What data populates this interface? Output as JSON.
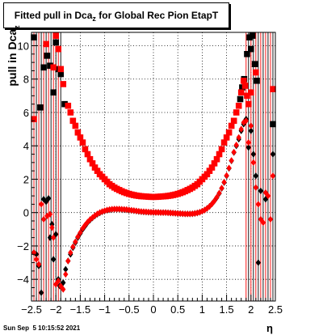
{
  "title": {
    "main": "Fitted pull in Dca",
    "subscript": "z",
    "rest": " for Global Rec Pion EtapT"
  },
  "ylabel": {
    "main": "pull in Dca",
    "subscript": "z"
  },
  "xlabel": "η",
  "timestamp": "Sun Sep  5 10:15:52 2021",
  "colors": {
    "series_a": "#000000",
    "series_b": "#ff0000",
    "grid": "#000000"
  },
  "chart_data": {
    "type": "scatter",
    "title": "Fitted pull in Dca_z for Global Rec Pion EtapT",
    "xlabel": "η",
    "ylabel": "pull in Dca_z",
    "xlim": [
      -2.5,
      2.5
    ],
    "ylim": [
      -5.3,
      10.8
    ],
    "grid": true,
    "x_ticks": [
      -2.5,
      -2,
      -1.5,
      -1,
      -0.5,
      0,
      0.5,
      1,
      1.5,
      2,
      2.5
    ],
    "x_tick_labels": [
      "−2.5",
      "−2",
      "−1.5",
      "−1",
      "−0.5",
      "0",
      "0.5",
      "1",
      "1.5",
      "2",
      "2.5"
    ],
    "y_ticks": [
      -4,
      -2,
      0,
      2,
      4,
      6,
      8,
      10
    ],
    "y_tick_labels": [
      "−4",
      "−2",
      "0",
      "2",
      "4",
      "6",
      "8",
      "10"
    ],
    "series": [
      {
        "marker": "square",
        "color": "#000000",
        "points": [
          [
            -2.45,
            10.5
          ],
          [
            -2.32,
            6.3
          ],
          [
            -2.25,
            8.7
          ],
          [
            -2.18,
            9.4
          ],
          [
            -2.12,
            8.8
          ],
          [
            -2.05,
            7.2
          ],
          [
            -2.0,
            10.2
          ],
          [
            -1.95,
            8.6
          ],
          [
            -1.9,
            8.3
          ],
          [
            -1.82,
            6.5
          ],
          [
            1.78,
            6.8
          ],
          [
            1.82,
            7.5
          ],
          [
            1.86,
            8.0
          ],
          [
            1.92,
            9.5
          ],
          [
            1.97,
            10.5
          ],
          [
            2.0,
            9.8
          ],
          [
            2.03,
            10.6
          ],
          [
            2.08,
            8.9
          ],
          [
            2.12,
            7.9
          ],
          [
            2.45,
            5.3
          ]
        ]
      },
      {
        "marker": "square",
        "color": "#ff0000",
        "points": [
          [
            -2.45,
            5.6
          ],
          [
            -2.2,
            10.1
          ],
          [
            -2.05,
            8.7
          ],
          [
            -2.0,
            10.6
          ],
          [
            -1.95,
            9.8
          ],
          [
            -1.9,
            8.6
          ],
          [
            -1.85,
            7.7
          ],
          [
            -1.75,
            6.4
          ],
          [
            -1.7,
            6.0
          ],
          [
            -1.65,
            5.5
          ],
          [
            -1.6,
            5.2
          ],
          [
            -1.55,
            4.8
          ],
          [
            -1.5,
            4.5
          ],
          [
            -1.45,
            4.2
          ],
          [
            -1.4,
            3.8
          ],
          [
            -1.35,
            3.5
          ],
          [
            -1.3,
            3.2
          ],
          [
            -1.25,
            2.95
          ],
          [
            -1.2,
            2.7
          ],
          [
            -1.15,
            2.5
          ],
          [
            -1.1,
            2.3
          ],
          [
            -1.05,
            2.15
          ],
          [
            -1.0,
            2.0
          ],
          [
            -0.95,
            1.85
          ],
          [
            -0.9,
            1.7
          ],
          [
            -0.85,
            1.6
          ],
          [
            -0.8,
            1.5
          ],
          [
            -0.75,
            1.42
          ],
          [
            -0.7,
            1.35
          ],
          [
            -0.65,
            1.28
          ],
          [
            -0.6,
            1.22
          ],
          [
            -0.55,
            1.17
          ],
          [
            -0.5,
            1.12
          ],
          [
            -0.45,
            1.08
          ],
          [
            -0.4,
            1.05
          ],
          [
            -0.35,
            1.02
          ],
          [
            -0.3,
            1.0
          ],
          [
            -0.25,
            0.98
          ],
          [
            -0.2,
            0.97
          ],
          [
            -0.15,
            0.96
          ],
          [
            -0.1,
            0.95
          ],
          [
            -0.05,
            0.94
          ],
          [
            0.0,
            0.94
          ],
          [
            0.05,
            0.94
          ],
          [
            0.1,
            0.95
          ],
          [
            0.15,
            0.96
          ],
          [
            0.2,
            0.97
          ],
          [
            0.25,
            0.98
          ],
          [
            0.3,
            1.0
          ],
          [
            0.35,
            1.02
          ],
          [
            0.4,
            1.05
          ],
          [
            0.45,
            1.08
          ],
          [
            0.5,
            1.12
          ],
          [
            0.55,
            1.17
          ],
          [
            0.6,
            1.22
          ],
          [
            0.65,
            1.28
          ],
          [
            0.7,
            1.35
          ],
          [
            0.75,
            1.42
          ],
          [
            0.8,
            1.5
          ],
          [
            0.85,
            1.6
          ],
          [
            0.9,
            1.7
          ],
          [
            0.95,
            1.85
          ],
          [
            1.0,
            2.0
          ],
          [
            1.05,
            2.15
          ],
          [
            1.1,
            2.3
          ],
          [
            1.15,
            2.5
          ],
          [
            1.2,
            2.7
          ],
          [
            1.25,
            2.95
          ],
          [
            1.3,
            3.2
          ],
          [
            1.35,
            3.5
          ],
          [
            1.4,
            3.8
          ],
          [
            1.45,
            4.2
          ],
          [
            1.5,
            4.5
          ],
          [
            1.55,
            4.8
          ],
          [
            1.6,
            5.2
          ],
          [
            1.65,
            5.5
          ],
          [
            1.7,
            6.0
          ],
          [
            1.75,
            6.4
          ],
          [
            1.8,
            7.2
          ],
          [
            1.85,
            7.9
          ],
          [
            1.88,
            7.6
          ],
          [
            1.92,
            7.0
          ],
          [
            1.95,
            6.5
          ],
          [
            2.0,
            7.2
          ],
          [
            2.1,
            8.4
          ],
          [
            2.45,
            7.4
          ]
        ]
      },
      {
        "marker": "diamond",
        "color": "#000000",
        "points": [
          [
            -2.45,
            -2.4
          ],
          [
            -2.4,
            -2.5
          ],
          [
            -2.35,
            -3.2
          ],
          [
            -2.3,
            -4.8
          ],
          [
            -2.25,
            0.8
          ],
          [
            -2.2,
            0.65
          ],
          [
            -2.15,
            0.85
          ],
          [
            -2.12,
            -1.5
          ],
          [
            -2.08,
            -0.7
          ],
          [
            -2.05,
            -2.8
          ],
          [
            -2.0,
            -1.3
          ],
          [
            -1.95,
            -4.0
          ],
          [
            -1.92,
            -4.4
          ],
          [
            -1.85,
            -4.2
          ],
          [
            -1.8,
            -3.4
          ],
          [
            -1.75,
            -2.9
          ],
          [
            -1.7,
            -2.5
          ],
          [
            -1.65,
            -2.1
          ],
          [
            -1.6,
            -1.8
          ],
          [
            -1.55,
            -1.5
          ],
          [
            -1.5,
            -1.25
          ],
          [
            -1.45,
            -1.0
          ],
          [
            -1.4,
            -0.8
          ],
          [
            -1.35,
            -0.6
          ],
          [
            -1.3,
            -0.45
          ],
          [
            -1.25,
            -0.32
          ],
          [
            -1.2,
            -0.2
          ],
          [
            -1.15,
            -0.1
          ],
          [
            -1.1,
            -0.02
          ],
          [
            -1.05,
            0.05
          ],
          [
            -1.0,
            0.1
          ],
          [
            -0.95,
            0.14
          ],
          [
            -0.9,
            0.17
          ],
          [
            -0.85,
            0.19
          ],
          [
            -0.8,
            0.2
          ],
          [
            -0.75,
            0.2
          ],
          [
            -0.7,
            0.2
          ],
          [
            -0.65,
            0.19
          ],
          [
            -0.6,
            0.18
          ],
          [
            -0.55,
            0.17
          ],
          [
            -0.5,
            0.15
          ],
          [
            -0.45,
            0.13
          ],
          [
            -0.4,
            0.11
          ],
          [
            -0.35,
            0.09
          ],
          [
            -0.3,
            0.07
          ],
          [
            -0.25,
            0.05
          ],
          [
            -0.2,
            0.04
          ],
          [
            -0.15,
            0.03
          ],
          [
            -0.1,
            0.02
          ],
          [
            -0.05,
            0.02
          ],
          [
            0.0,
            0.01
          ],
          [
            0.05,
            0.01
          ],
          [
            0.1,
            0.01
          ],
          [
            0.15,
            0.0
          ],
          [
            0.2,
            0.0
          ],
          [
            0.25,
            0.0
          ],
          [
            0.3,
            -0.01
          ],
          [
            0.35,
            -0.02
          ],
          [
            0.4,
            -0.03
          ],
          [
            0.45,
            -0.04
          ],
          [
            0.5,
            -0.05
          ],
          [
            0.55,
            -0.06
          ],
          [
            0.6,
            -0.07
          ],
          [
            0.65,
            -0.08
          ],
          [
            0.7,
            -0.08
          ],
          [
            0.75,
            -0.08
          ],
          [
            0.8,
            -0.07
          ],
          [
            0.85,
            -0.05
          ],
          [
            0.9,
            -0.02
          ],
          [
            0.95,
            0.02
          ],
          [
            1.0,
            0.08
          ],
          [
            1.05,
            0.15
          ],
          [
            1.1,
            0.25
          ],
          [
            1.15,
            0.37
          ],
          [
            1.2,
            0.52
          ],
          [
            1.25,
            0.7
          ],
          [
            1.3,
            0.9
          ],
          [
            1.35,
            1.15
          ],
          [
            1.4,
            1.45
          ],
          [
            1.45,
            1.8
          ],
          [
            1.5,
            2.2
          ],
          [
            1.55,
            2.65
          ],
          [
            1.6,
            3.1
          ],
          [
            1.65,
            3.6
          ],
          [
            1.7,
            4.0
          ],
          [
            1.75,
            4.4
          ],
          [
            1.8,
            4.9
          ],
          [
            1.85,
            5.3
          ],
          [
            1.9,
            5.6
          ],
          [
            1.95,
            3.9
          ],
          [
            2.0,
            4.9
          ],
          [
            2.05,
            3.5
          ],
          [
            2.1,
            2.2
          ],
          [
            2.15,
            -3.0
          ],
          [
            2.2,
            1.3
          ],
          [
            2.3,
            0.8
          ],
          [
            2.45,
            3.5
          ]
        ]
      },
      {
        "marker": "diamond",
        "color": "#ff0000",
        "points": [
          [
            -2.45,
            -2.4
          ],
          [
            -2.4,
            -2.8
          ],
          [
            -2.35,
            -3.1
          ],
          [
            -2.3,
            0.5
          ],
          [
            -2.25,
            -0.4
          ],
          [
            -2.18,
            -0.2
          ],
          [
            -2.12,
            -0.1
          ],
          [
            -2.08,
            -0.9
          ],
          [
            -2.05,
            -1.5
          ],
          [
            -2.0,
            -4.3
          ],
          [
            -1.95,
            -4.1
          ],
          [
            -1.9,
            -4.4
          ],
          [
            -1.85,
            -4.6
          ],
          [
            -1.8,
            -3.7
          ],
          [
            -1.75,
            -2.9
          ],
          [
            -1.7,
            -2.4
          ],
          [
            -1.65,
            -2.05
          ],
          [
            -1.6,
            -1.75
          ],
          [
            -1.55,
            -1.45
          ],
          [
            -1.5,
            -1.2
          ],
          [
            -1.45,
            -0.95
          ],
          [
            -1.4,
            -0.75
          ],
          [
            -1.35,
            -0.57
          ],
          [
            -1.3,
            -0.42
          ],
          [
            -1.25,
            -0.3
          ],
          [
            -1.2,
            -0.18
          ],
          [
            -1.15,
            -0.08
          ],
          [
            -1.1,
            0.0
          ],
          [
            -1.05,
            0.06
          ],
          [
            -1.0,
            0.11
          ],
          [
            -0.95,
            0.15
          ],
          [
            -0.9,
            0.18
          ],
          [
            -0.85,
            0.2
          ],
          [
            -0.8,
            0.21
          ],
          [
            -0.75,
            0.21
          ],
          [
            -0.7,
            0.21
          ],
          [
            -0.65,
            0.2
          ],
          [
            -0.6,
            0.19
          ],
          [
            -0.55,
            0.18
          ],
          [
            -0.5,
            0.16
          ],
          [
            -0.45,
            0.14
          ],
          [
            -0.4,
            0.12
          ],
          [
            -0.35,
            0.1
          ],
          [
            -0.3,
            0.08
          ],
          [
            -0.25,
            0.06
          ],
          [
            -0.2,
            0.05
          ],
          [
            -0.15,
            0.04
          ],
          [
            -0.1,
            0.03
          ],
          [
            -0.05,
            0.02
          ],
          [
            0.0,
            0.02
          ],
          [
            0.05,
            0.01
          ],
          [
            0.1,
            0.01
          ],
          [
            0.15,
            0.0
          ],
          [
            0.2,
            0.0
          ],
          [
            0.25,
            0.0
          ],
          [
            0.3,
            -0.01
          ],
          [
            0.35,
            -0.02
          ],
          [
            0.4,
            -0.03
          ],
          [
            0.45,
            -0.04
          ],
          [
            0.5,
            -0.05
          ],
          [
            0.55,
            -0.06
          ],
          [
            0.6,
            -0.07
          ],
          [
            0.65,
            -0.08
          ],
          [
            0.7,
            -0.08
          ],
          [
            0.75,
            -0.08
          ],
          [
            0.8,
            -0.07
          ],
          [
            0.85,
            -0.05
          ],
          [
            0.9,
            -0.02
          ],
          [
            0.95,
            0.02
          ],
          [
            1.0,
            0.08
          ],
          [
            1.05,
            0.15
          ],
          [
            1.1,
            0.25
          ],
          [
            1.15,
            0.37
          ],
          [
            1.2,
            0.52
          ],
          [
            1.25,
            0.7
          ],
          [
            1.3,
            0.92
          ],
          [
            1.35,
            1.17
          ],
          [
            1.4,
            1.47
          ],
          [
            1.45,
            1.82
          ],
          [
            1.5,
            2.22
          ],
          [
            1.55,
            2.67
          ],
          [
            1.6,
            3.12
          ],
          [
            1.65,
            3.62
          ],
          [
            1.7,
            4.05
          ],
          [
            1.75,
            4.5
          ],
          [
            1.8,
            5.0
          ],
          [
            1.85,
            5.4
          ],
          [
            1.9,
            5.5
          ],
          [
            1.95,
            4.2
          ],
          [
            2.0,
            5.2
          ],
          [
            2.05,
            3.0
          ],
          [
            2.1,
            1.5
          ],
          [
            2.15,
            0.5
          ],
          [
            2.2,
            -0.4
          ],
          [
            2.25,
            -0.6
          ],
          [
            2.3,
            1.2
          ],
          [
            2.35,
            1.0
          ],
          [
            2.4,
            -0.4
          ],
          [
            2.45,
            2.2
          ]
        ]
      }
    ],
    "error_bar_x": [
      -2.45,
      -2.4,
      -2.35,
      -2.3,
      -2.25,
      -2.2,
      -2.15,
      -2.1,
      -2.05,
      -2.0,
      -1.95,
      -1.9,
      1.9,
      1.95,
      2.0,
      2.05,
      2.1,
      2.15,
      2.2,
      2.25,
      2.3,
      2.35,
      2.4,
      2.45
    ]
  }
}
